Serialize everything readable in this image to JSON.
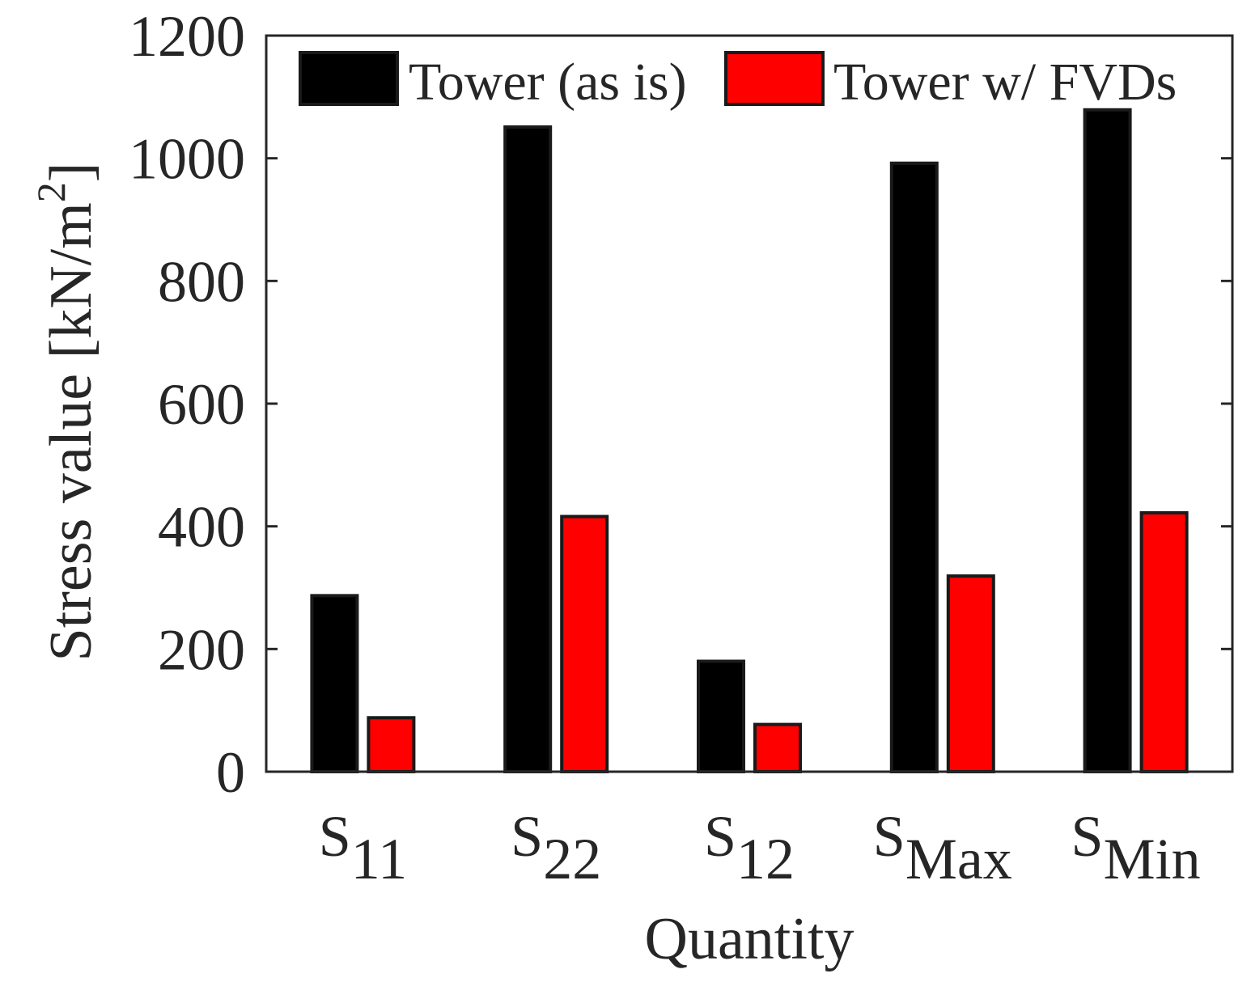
{
  "chart_data": {
    "type": "bar",
    "title": "",
    "xlabel": "Quantity",
    "ylabel": {
      "text": "Stress value [kN/m",
      "superscript": "2",
      "close": "]"
    },
    "ylim": [
      0,
      1200
    ],
    "yticks": [
      "0",
      "200",
      "400",
      "600",
      "800",
      "1000",
      "1200"
    ],
    "categories": [
      {
        "main": "S",
        "sub": "11"
      },
      {
        "main": "S",
        "sub": "22"
      },
      {
        "main": "S",
        "sub": "12"
      },
      {
        "main": "S",
        "sub": "Max"
      },
      {
        "main": "S",
        "sub": "Min"
      }
    ],
    "series": [
      {
        "name": "Tower (as is)",
        "color": "#000000",
        "values": [
          287,
          1051,
          180,
          992,
          1079
        ]
      },
      {
        "name": "Tower w/ FVDs",
        "color": "#ff0000",
        "values": [
          88,
          416,
          77,
          319,
          422
        ]
      }
    ],
    "legend_position": "top",
    "grid": false
  }
}
